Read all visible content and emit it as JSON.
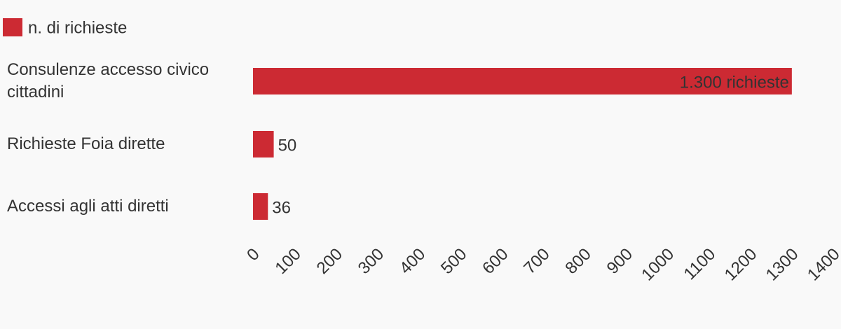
{
  "chart_data": {
    "type": "barh",
    "categories": [
      "Consulenze accesso civico cittadini",
      "Richieste Foia dirette",
      "Accessi agli atti diretti"
    ],
    "series": [
      {
        "name": "n. di richieste",
        "color": "#cc2a33",
        "values": [
          1300,
          50,
          36
        ],
        "value_labels": [
          "1.300 richieste",
          "50",
          "36"
        ]
      }
    ],
    "xlim": [
      0,
      1400
    ],
    "xticks": [
      0,
      100,
      200,
      300,
      400,
      500,
      600,
      700,
      800,
      900,
      1000,
      1100,
      1200,
      1300,
      1400
    ],
    "legend": "top-left"
  }
}
